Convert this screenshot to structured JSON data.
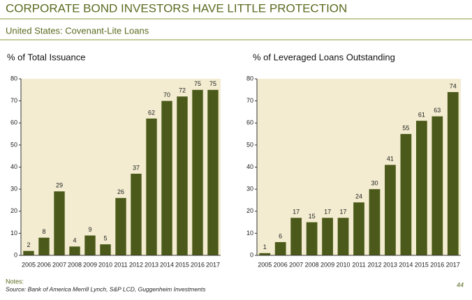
{
  "header": {
    "title": "CORPORATE BOND INVESTORS HAVE LITTLE PROTECTION",
    "subtitle": "United States: Covenant-Lite Loans"
  },
  "chart_data": [
    {
      "type": "bar",
      "title": "% of Total Issuance",
      "categories": [
        "2005",
        "2006",
        "2007",
        "2008",
        "2009",
        "2010",
        "2011",
        "2012",
        "2013",
        "2014",
        "2015",
        "2016",
        "2017"
      ],
      "values": [
        2,
        8,
        29,
        4,
        9,
        5,
        26,
        37,
        62,
        70,
        72,
        75,
        75
      ],
      "color": "#4b5a1a",
      "ylim": [
        0,
        80
      ],
      "yticks": [
        0,
        10,
        20,
        30,
        40,
        50,
        60,
        70,
        80
      ]
    },
    {
      "type": "bar",
      "title": "% of Leveraged Loans Outstanding",
      "categories": [
        "2005",
        "2006",
        "2007",
        "2008",
        "2009",
        "2010",
        "2011",
        "2012",
        "2013",
        "2014",
        "2015",
        "2016",
        "2017"
      ],
      "values": [
        1,
        6,
        17,
        15,
        17,
        17,
        24,
        30,
        41,
        55,
        61,
        63,
        74
      ],
      "color": "#4b5a1a",
      "ylim": [
        0,
        80
      ],
      "yticks": [
        0,
        10,
        20,
        30,
        40,
        50,
        60,
        70,
        80
      ]
    }
  ],
  "footer": {
    "notes": "Notes:",
    "source": "Source: Bank of America Merrill Lynch, S&P LCD, Guggenheim Investments",
    "page": "44"
  }
}
